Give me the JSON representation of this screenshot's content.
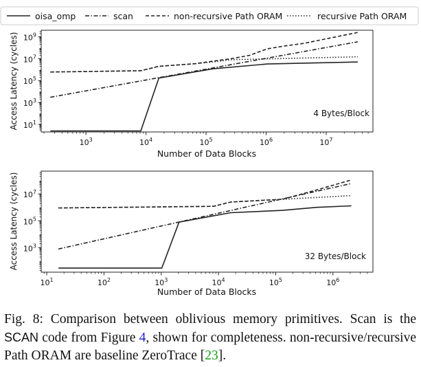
{
  "chart_data": [
    {
      "type": "line",
      "panel_label": "4 Bytes/Block",
      "xlabel": "Number of Data Blocks",
      "ylabel": "Access Latency (cycles)",
      "xscale": "log",
      "yscale": "log",
      "xlim": [
        180,
        60000000
      ],
      "ylim": [
        2,
        4000000000
      ],
      "xticks": [
        1000,
        10000,
        100000,
        1000000,
        10000000
      ],
      "xtick_labels": [
        "10^3",
        "10^4",
        "10^5",
        "10^6",
        "10^7"
      ],
      "yticks": [
        10,
        1000,
        100000,
        10000000,
        1000000000
      ],
      "ytick_labels": [
        "10^1",
        "10^3",
        "10^5",
        "10^7",
        "10^9"
      ],
      "series": [
        {
          "name": "oisa_omp",
          "style": "solid",
          "points": [
            [
              256,
              2.5
            ],
            [
              8192,
              2.5
            ],
            [
              16384,
              170000
            ],
            [
              131072,
              1200000
            ],
            [
              1048576,
              3300000
            ],
            [
              33554432,
              5000000
            ]
          ]
        },
        {
          "name": "scan",
          "style": "dashdot",
          "points": [
            [
              256,
              3000
            ],
            [
              33554432,
              350000000
            ]
          ]
        },
        {
          "name": "non-recursive Path ORAM",
          "style": "dashed",
          "points": [
            [
              256,
              600000
            ],
            [
              8192,
              800000
            ],
            [
              16384,
              2000000
            ],
            [
              65536,
              3500000
            ],
            [
              131072,
              6000000
            ],
            [
              262144,
              10000000
            ],
            [
              524288,
              20000000
            ],
            [
              1048576,
              80000000
            ],
            [
              2097152,
              150000000
            ],
            [
              4194304,
              250000000
            ],
            [
              33554432,
              2500000000
            ]
          ]
        },
        {
          "name": "recursive Path ORAM",
          "style": "dotted",
          "points": [
            [
              256,
              600000
            ],
            [
              8192,
              800000
            ],
            [
              16384,
              2000000
            ],
            [
              65536,
              3500000
            ],
            [
              131072,
              5000000
            ],
            [
              262144,
              8000000
            ],
            [
              33554432,
              15000000
            ]
          ]
        }
      ]
    },
    {
      "type": "line",
      "panel_label": "32 Bytes/Block",
      "xlabel": "Number of Data Blocks",
      "ylabel": "Access Latency (cycles)",
      "xscale": "log",
      "yscale": "log",
      "xlim": [
        8,
        5000000
      ],
      "ylim": [
        15,
        500000000
      ],
      "xticks": [
        10,
        100,
        1000,
        10000,
        100000,
        1000000
      ],
      "xtick_labels": [
        "10^1",
        "10^2",
        "10^3",
        "10^4",
        "10^5",
        "10^6"
      ],
      "yticks": [
        1000,
        100000,
        10000000
      ],
      "ytick_labels": [
        "10^3",
        "10^5",
        "10^7"
      ],
      "series": [
        {
          "name": "oisa_omp",
          "style": "solid",
          "points": [
            [
              16,
              30
            ],
            [
              1024,
              30
            ],
            [
              2048,
              80000
            ],
            [
              16384,
              400000
            ],
            [
              131072,
              600000
            ],
            [
              524288,
              1000000
            ],
            [
              2097152,
              1300000
            ]
          ]
        },
        {
          "name": "scan",
          "style": "dashdot",
          "points": [
            [
              16,
              800
            ],
            [
              2097152,
              60000000
            ]
          ]
        },
        {
          "name": "non-recursive Path ORAM",
          "style": "dashed",
          "points": [
            [
              16,
              900000
            ],
            [
              8192,
              1200000
            ],
            [
              16384,
              2500000
            ],
            [
              131072,
              4000000
            ],
            [
              524288,
              20000000
            ],
            [
              2097152,
              110000000
            ]
          ]
        },
        {
          "name": "recursive Path ORAM",
          "style": "dotted",
          "points": [
            [
              16,
              900000
            ],
            [
              8192,
              1200000
            ],
            [
              16384,
              2500000
            ],
            [
              65536,
              3500000
            ],
            [
              131072,
              4000000
            ],
            [
              2097152,
              7500000
            ]
          ]
        }
      ]
    }
  ],
  "legend": {
    "entries": [
      "oisa_omp",
      "scan",
      "non-recursive Path ORAM",
      "recursive Path ORAM"
    ],
    "styles": [
      "solid",
      "dashdot",
      "dashed",
      "dotted"
    ]
  },
  "caption": {
    "fig_label": "Fig. 8:",
    "text1": " Comparison between oblivious memory primitives. Scan is the ",
    "scan_code": "SCAN",
    "text2": " code from Figure ",
    "fig_ref": "4",
    "text3": ", shown for completeness. non-recursive/recursive Path ORAM are baseline ZeroTrace [",
    "cite": "23",
    "text4": "]."
  },
  "colors": {
    "line": "#222222",
    "legend_border": "#cfcfcf",
    "fig_ref": "#1a1acc",
    "cite": "#19a019"
  }
}
